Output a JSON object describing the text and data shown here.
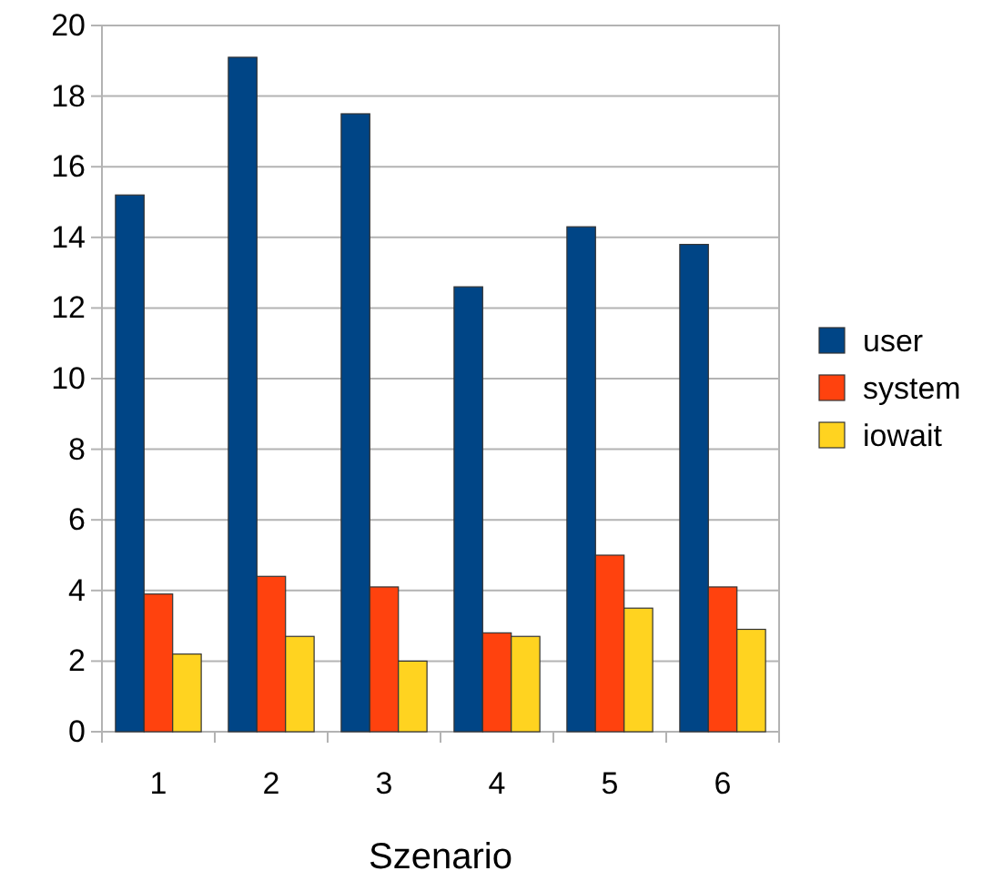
{
  "chart_data": {
    "type": "bar",
    "xlabel": "Szenario",
    "categories": [
      "1",
      "2",
      "3",
      "4",
      "5",
      "6"
    ],
    "series": [
      {
        "name": "user",
        "color": "#004586",
        "values": [
          15.2,
          19.1,
          17.5,
          12.6,
          14.3,
          13.8
        ]
      },
      {
        "name": "system",
        "color": "#ff420e",
        "values": [
          3.9,
          4.4,
          4.1,
          2.8,
          5.0,
          4.1
        ]
      },
      {
        "name": "iowait",
        "color": "#ffd320",
        "values": [
          2.2,
          2.7,
          2.0,
          2.7,
          3.5,
          2.9
        ]
      }
    ],
    "ylim": [
      0,
      20
    ],
    "yticks": [
      0,
      2,
      4,
      6,
      8,
      10,
      12,
      14,
      16,
      18,
      20
    ],
    "grid": "y",
    "legend": "right"
  }
}
